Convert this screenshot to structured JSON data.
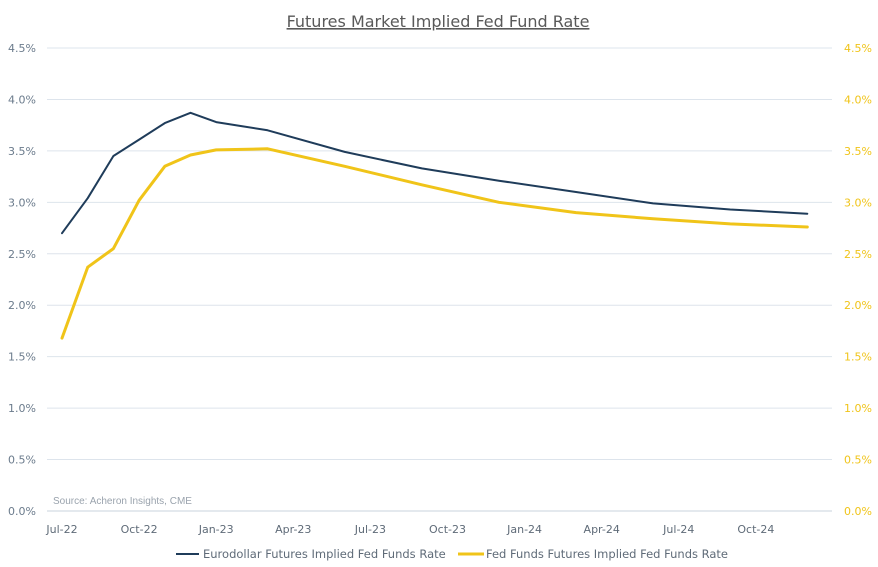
{
  "chart_data": {
    "type": "line",
    "title": "Futures Market Implied Fed Fund Rate",
    "source": "Source: Acheron Insights, CME",
    "x_ticks": [
      "Jul-22",
      "Oct-22",
      "Jan-23",
      "Apr-23",
      "Jul-23",
      "Oct-23",
      "Jan-24",
      "Apr-24",
      "Jul-24",
      "Oct-24"
    ],
    "y_left_ticks": [
      "0.0%",
      "0.5%",
      "1.0%",
      "1.5%",
      "2.0%",
      "2.5%",
      "3.0%",
      "3.5%",
      "4.0%",
      "4.5%"
    ],
    "y_right_ticks": [
      "0.0%",
      "0.5%",
      "1.0%",
      "1.5%",
      "2.0%",
      "2.5%",
      "3.0%",
      "3.5%",
      "4.0%",
      "4.5%"
    ],
    "ylim": [
      0,
      4.5
    ],
    "grid": true,
    "legend_position": "bottom",
    "series": [
      {
        "name": "Eurodollar Futures Implied Fed Funds Rate",
        "color": "#1f3c5a",
        "axis": "left",
        "x": [
          "2022-07",
          "2022-08",
          "2022-09",
          "2022-10",
          "2022-11",
          "2022-12",
          "2023-01",
          "2023-03",
          "2023-06",
          "2023-09",
          "2023-12",
          "2024-03",
          "2024-06",
          "2024-09",
          "2024-12"
        ],
        "y": [
          2.7,
          3.04,
          3.45,
          3.61,
          3.77,
          3.87,
          3.78,
          3.7,
          3.49,
          3.33,
          3.21,
          3.1,
          2.99,
          2.93,
          2.89
        ]
      },
      {
        "name": "Fed Funds Futures Implied Fed Funds Rate",
        "color": "#f0c419",
        "axis": "right",
        "x": [
          "2022-07",
          "2022-08",
          "2022-09",
          "2022-10",
          "2022-11",
          "2022-12",
          "2023-01",
          "2023-03",
          "2023-06",
          "2023-09",
          "2023-12",
          "2024-03",
          "2024-06",
          "2024-09",
          "2024-12"
        ],
        "y": [
          1.68,
          2.37,
          2.55,
          3.02,
          3.35,
          3.46,
          3.51,
          3.52,
          3.35,
          3.17,
          3.0,
          2.9,
          2.84,
          2.79,
          2.76
        ]
      }
    ]
  }
}
